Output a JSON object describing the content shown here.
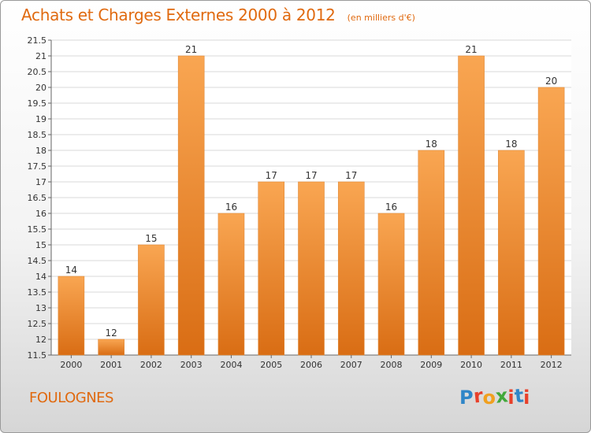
{
  "header": {
    "title": "Achats et Charges Externes 2000 à 2012",
    "subtitle": "(en milliers d'€)"
  },
  "footer": {
    "commune": "FOULOGNES",
    "logo_text": "Proxiti"
  },
  "colors": {
    "accent": "#e06a10",
    "bar_top": "#f9a652",
    "bar_bottom": "#d96d14",
    "logo_letters": [
      "#2f86c8",
      "#e8402a",
      "#f0a020",
      "#42a83a",
      "#e8402a",
      "#2f86c8",
      "#e8402a"
    ]
  },
  "chart_data": {
    "type": "bar",
    "categories": [
      "2000",
      "2001",
      "2002",
      "2003",
      "2004",
      "2005",
      "2006",
      "2007",
      "2008",
      "2009",
      "2010",
      "2011",
      "2012"
    ],
    "values": [
      14,
      12,
      15,
      21,
      16,
      17,
      17,
      17,
      16,
      18,
      21,
      18,
      20
    ],
    "ylim": [
      11.5,
      21.5
    ],
    "yticks": [
      "11.5",
      "12",
      "12.5",
      "13",
      "13.5",
      "14",
      "14.5",
      "15",
      "15.5",
      "16",
      "16.5",
      "17",
      "17.5",
      "18",
      "18.5",
      "19",
      "19.5",
      "20",
      "20.5",
      "21",
      "21.5"
    ],
    "grid": true,
    "xlabel": "",
    "ylabel": ""
  }
}
